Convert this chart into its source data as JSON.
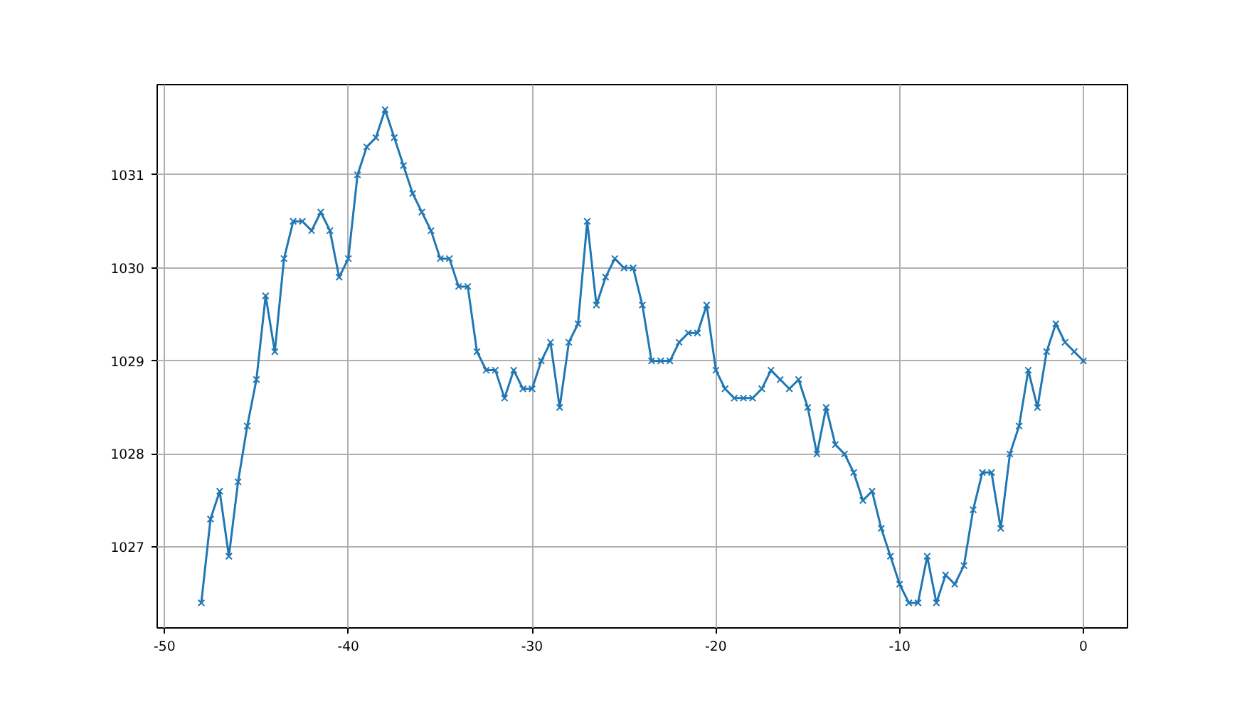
{
  "chart_data": {
    "type": "line",
    "marker": "cross",
    "grid": true,
    "x": [
      -48,
      -47.5,
      -47,
      -46.5,
      -46,
      -45.5,
      -45,
      -44.5,
      -44,
      -43.5,
      -43,
      -42.5,
      -42,
      -41.5,
      -41,
      -40.5,
      -40,
      -39.5,
      -39,
      -38.5,
      -38,
      -37.5,
      -37,
      -36.5,
      -36,
      -35.5,
      -35,
      -34.5,
      -34,
      -33.5,
      -33,
      -32.5,
      -32,
      -31.5,
      -31,
      -30.5,
      -30,
      -29.5,
      -29,
      -28.5,
      -28,
      -27.5,
      -27,
      -26.5,
      -26,
      -25.5,
      -25,
      -24.5,
      -24,
      -23.5,
      -23,
      -22.5,
      -22,
      -21.5,
      -21,
      -20.5,
      -20,
      -19.5,
      -19,
      -18.5,
      -18,
      -17.5,
      -17,
      -16.5,
      -16,
      -15.5,
      -15,
      -14.5,
      -14,
      -13.5,
      -13,
      -12.5,
      -12,
      -11.5,
      -11,
      -10.5,
      -10,
      -9.5,
      -9,
      -8.5,
      -8,
      -7.5,
      -7,
      -6.5,
      -6,
      -5.5,
      -5,
      -4.5,
      -4,
      -3.5,
      -3,
      -2.5,
      -2,
      -1.5,
      -1,
      -0.5,
      0
    ],
    "series": [
      {
        "color": "#1f77b4",
        "values": [
          1026.4,
          1027.3,
          1027.6,
          1026.9,
          1027.7,
          1028.3,
          1028.8,
          1029.7,
          1029.1,
          1030.1,
          1030.5,
          1030.5,
          1030.4,
          1030.6,
          1030.4,
          1029.9,
          1030.1,
          1031.0,
          1031.3,
          1031.4,
          1031.7,
          1031.4,
          1031.1,
          1030.8,
          1030.6,
          1030.4,
          1030.1,
          1030.1,
          1029.8,
          1029.8,
          1029.1,
          1028.9,
          1028.9,
          1028.6,
          1028.9,
          1028.7,
          1028.7,
          1029.0,
          1029.2,
          1028.5,
          1029.2,
          1029.4,
          1030.5,
          1029.6,
          1029.9,
          1030.1,
          1030.0,
          1030.0,
          1029.6,
          1029.0,
          1029.0,
          1029.0,
          1029.2,
          1029.3,
          1029.3,
          1029.6,
          1028.9,
          1028.7,
          1028.6,
          1028.6,
          1028.6,
          1028.7,
          1028.9,
          1028.8,
          1028.7,
          1028.8,
          1028.5,
          1028.0,
          1028.5,
          1028.1,
          1028.0,
          1027.8,
          1027.5,
          1027.6,
          1027.2,
          1026.9,
          1026.6,
          1026.4,
          1026.4,
          1026.9,
          1026.4,
          1026.7,
          1026.6,
          1026.8,
          1027.4,
          1027.8,
          1027.8,
          1027.2,
          1028.0,
          1028.3,
          1028.9,
          1028.5,
          1029.1,
          1029.4,
          1029.2,
          1029.1,
          1029.0
        ]
      }
    ],
    "xlim": [
      -50.4,
      2.4
    ],
    "ylim": [
      1026.13,
      1031.97
    ],
    "xticks": [
      -50,
      -40,
      -30,
      -20,
      -10,
      0
    ],
    "yticks": [
      1027,
      1028,
      1029,
      1030,
      1031
    ]
  }
}
